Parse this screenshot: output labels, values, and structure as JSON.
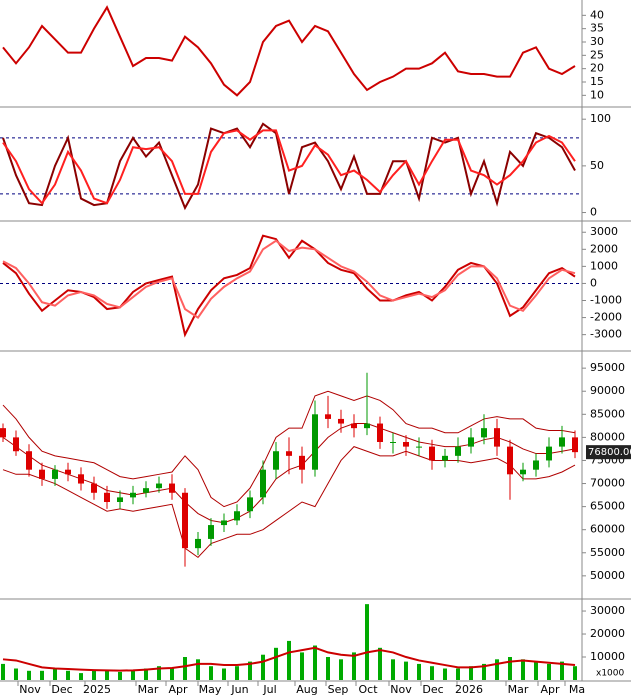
{
  "chart_data": [
    {
      "type": "line",
      "ylim": [
        6,
        45
      ],
      "yticks": [
        10,
        15,
        20,
        25,
        30,
        35,
        40
      ],
      "series": [
        {
          "color": "#cc0000",
          "values": [
            28,
            22,
            28,
            36,
            31,
            26,
            26,
            35,
            43,
            32,
            21,
            24,
            24,
            23,
            32,
            28,
            22,
            14,
            10,
            15,
            30,
            36,
            38,
            30,
            36,
            34,
            26,
            18,
            12,
            15,
            17,
            20,
            20,
            22,
            26,
            19,
            18,
            18,
            17,
            17,
            26,
            28,
            20,
            18,
            21
          ]
        }
      ]
    },
    {
      "type": "line",
      "ylim": [
        -8,
        112
      ],
      "yticks": [
        0,
        50,
        100
      ],
      "reference_lines": [
        20,
        80
      ],
      "series": [
        {
          "color": "#8b0000",
          "values": [
            80,
            40,
            10,
            8,
            50,
            80,
            15,
            8,
            10,
            55,
            80,
            60,
            75,
            40,
            5,
            30,
            90,
            85,
            90,
            70,
            95,
            85,
            20,
            70,
            75,
            55,
            25,
            60,
            20,
            20,
            55,
            55,
            15,
            80,
            75,
            80,
            20,
            55,
            10,
            65,
            50,
            85,
            80,
            70,
            45
          ]
        },
        {
          "color": "#ff2020",
          "values": [
            75,
            55,
            25,
            10,
            30,
            65,
            45,
            15,
            10,
            35,
            70,
            68,
            70,
            55,
            20,
            20,
            65,
            85,
            88,
            78,
            88,
            88,
            45,
            50,
            72,
            62,
            40,
            45,
            35,
            22,
            40,
            55,
            30,
            55,
            78,
            78,
            45,
            40,
            30,
            40,
            55,
            75,
            82,
            75,
            55
          ]
        }
      ]
    },
    {
      "type": "line",
      "ylim": [
        -3900,
        3600
      ],
      "yticks": [
        -3000,
        -2000,
        -1000,
        0,
        1000,
        2000,
        3000
      ],
      "reference_lines": [
        0
      ],
      "series": [
        {
          "color": "#cc0000",
          "values": [
            1200,
            600,
            -600,
            -1600,
            -1000,
            -400,
            -500,
            -800,
            -1500,
            -1400,
            -500,
            0,
            200,
            400,
            -3000,
            -1500,
            -400,
            300,
            500,
            900,
            2800,
            2600,
            1500,
            2500,
            2000,
            1200,
            800,
            600,
            -300,
            -1000,
            -1000,
            -700,
            -500,
            -1000,
            -200,
            800,
            1200,
            1000,
            0,
            -1900,
            -1400,
            -400,
            600,
            900,
            400
          ]
        },
        {
          "color": "#ff6060",
          "values": [
            1300,
            900,
            0,
            -1100,
            -1300,
            -700,
            -500,
            -700,
            -1200,
            -1400,
            -800,
            -200,
            100,
            300,
            -1500,
            -2000,
            -900,
            -200,
            300,
            700,
            2000,
            2500,
            1900,
            2100,
            2000,
            1500,
            1000,
            700,
            100,
            -700,
            -1000,
            -800,
            -600,
            -800,
            -400,
            500,
            1000,
            1000,
            300,
            -1300,
            -1600,
            -700,
            300,
            800,
            600
          ]
        }
      ]
    },
    {
      "type": "candlestick",
      "ylim": [
        45200,
        98500
      ],
      "yticks": [
        50000,
        55000,
        60000,
        65000,
        70000,
        75000,
        80000,
        85000,
        90000,
        95000
      ],
      "up_color": "#009900",
      "down_color": "#dd0000",
      "open": [
        82000,
        80000,
        77000,
        73000,
        71000,
        73000,
        72000,
        70000,
        68000,
        66000,
        67000,
        68000,
        69000,
        70000,
        68000,
        56000,
        58000,
        61000,
        62000,
        64000,
        67000,
        73000,
        77000,
        76000,
        73000,
        85000,
        84000,
        83000,
        82000,
        83000,
        79000,
        79000,
        78000,
        78000,
        75000,
        76000,
        78000,
        80000,
        82000,
        78000,
        72000,
        73000,
        75000,
        78000,
        80000
      ],
      "high": [
        83000,
        81500,
        78500,
        74500,
        74000,
        74500,
        73500,
        71500,
        69500,
        68500,
        69500,
        70500,
        71500,
        72000,
        69000,
        59500,
        62500,
        63500,
        65500,
        68500,
        75000,
        79000,
        80000,
        78000,
        88000,
        89000,
        86000,
        85000,
        94000,
        84500,
        81000,
        80500,
        80000,
        79500,
        77500,
        80000,
        82000,
        85000,
        84000,
        79500,
        74500,
        76500,
        80000,
        82500,
        81500
      ],
      "low": [
        79000,
        76000,
        71500,
        69500,
        69500,
        70500,
        68500,
        66500,
        64500,
        64500,
        65500,
        67000,
        68000,
        66500,
        52000,
        54500,
        56500,
        59500,
        61000,
        62500,
        65500,
        71000,
        72000,
        70000,
        71500,
        82000,
        81000,
        80000,
        80500,
        77500,
        76500,
        76000,
        76000,
        73000,
        73500,
        74500,
        76500,
        78500,
        76000,
        66500,
        70500,
        71500,
        73500,
        76500,
        75500
      ],
      "close": [
        80000,
        77000,
        73000,
        71000,
        73000,
        72000,
        70000,
        68000,
        66000,
        67000,
        68000,
        69000,
        70000,
        68000,
        56000,
        58000,
        61000,
        62000,
        64000,
        67000,
        73000,
        77000,
        76000,
        73000,
        85000,
        84000,
        83000,
        82000,
        83000,
        79000,
        79000,
        78000,
        78000,
        75000,
        76000,
        78000,
        80000,
        82000,
        78000,
        72000,
        73000,
        75000,
        78000,
        80000,
        76800
      ],
      "last_price": {
        "value": 76800,
        "label": "76800.00"
      },
      "series": [
        {
          "color": "#b00000",
          "values": [
            87000,
            84000,
            80000,
            77000,
            76000,
            75500,
            75000,
            74500,
            73000,
            71500,
            71000,
            71500,
            72000,
            72500,
            76000,
            73000,
            67000,
            65000,
            66000,
            69000,
            74000,
            80000,
            82000,
            82000,
            89000,
            90000,
            89000,
            88000,
            89000,
            88000,
            86000,
            83000,
            82000,
            82000,
            81000,
            81000,
            82500,
            84000,
            84500,
            84000,
            84000,
            82000,
            81500,
            81500,
            81000
          ]
        },
        {
          "color": "#b00000",
          "values": [
            80000,
            78000,
            76000,
            74000,
            73000,
            72000,
            71000,
            70000,
            68500,
            68000,
            67500,
            68000,
            68500,
            69000,
            66000,
            63500,
            62000,
            61500,
            62500,
            64000,
            67000,
            71000,
            73000,
            74000,
            77000,
            80000,
            82000,
            83000,
            83000,
            82000,
            81000,
            80000,
            79000,
            78500,
            78000,
            78000,
            78500,
            79500,
            80000,
            79000,
            77500,
            76500,
            76500,
            77000,
            77500
          ]
        },
        {
          "color": "#b00000",
          "values": [
            73000,
            72000,
            72000,
            71000,
            70000,
            68500,
            67000,
            65500,
            64000,
            64500,
            64000,
            64500,
            65000,
            65500,
            56000,
            54000,
            57000,
            58000,
            59000,
            59000,
            60000,
            62000,
            64000,
            66000,
            65000,
            70000,
            75000,
            78000,
            77000,
            76000,
            76000,
            77000,
            76000,
            75000,
            75000,
            75000,
            74500,
            75000,
            75500,
            74000,
            71000,
            71000,
            71500,
            72500,
            74000
          ]
        }
      ]
    },
    {
      "type": "bar",
      "ylim": [
        0,
        34800
      ],
      "yticks": [
        10000,
        20000,
        30000
      ],
      "unit_label": "x1000",
      "color": "#00aa00",
      "values": [
        7000,
        5000,
        4000,
        4000,
        5000,
        4000,
        3000,
        4000,
        4000,
        3500,
        4000,
        5000,
        6000,
        5000,
        10000,
        9000,
        6000,
        5000,
        6000,
        8000,
        11000,
        14000,
        17000,
        12000,
        15000,
        10000,
        9000,
        12000,
        33000,
        14000,
        9000,
        8000,
        7000,
        6000,
        5000,
        5000,
        6000,
        7000,
        9000,
        10000,
        9000,
        8000,
        7000,
        8000,
        6000
      ],
      "series": [
        {
          "color": "#cc0000",
          "values": [
            9000,
            8500,
            7000,
            5500,
            5000,
            4800,
            4500,
            4300,
            4200,
            4100,
            4200,
            4500,
            5000,
            5200,
            6000,
            7000,
            7000,
            6500,
            6500,
            7000,
            8000,
            10000,
            12000,
            13000,
            14000,
            12000,
            11000,
            10500,
            12000,
            13000,
            12000,
            10000,
            8500,
            7500,
            6500,
            5500,
            5500,
            6000,
            7000,
            8000,
            8500,
            8000,
            7500,
            7000,
            6500
          ]
        }
      ],
      "x_axis_labels": [
        "Nov",
        "Dec",
        "2025",
        "Mar",
        "Apr",
        "May",
        "Jun",
        "Jul",
        "Aug",
        "Sep",
        "Oct",
        "Nov",
        "Dec",
        "2026",
        "Mar",
        "Apr",
        "Ma"
      ]
    }
  ]
}
